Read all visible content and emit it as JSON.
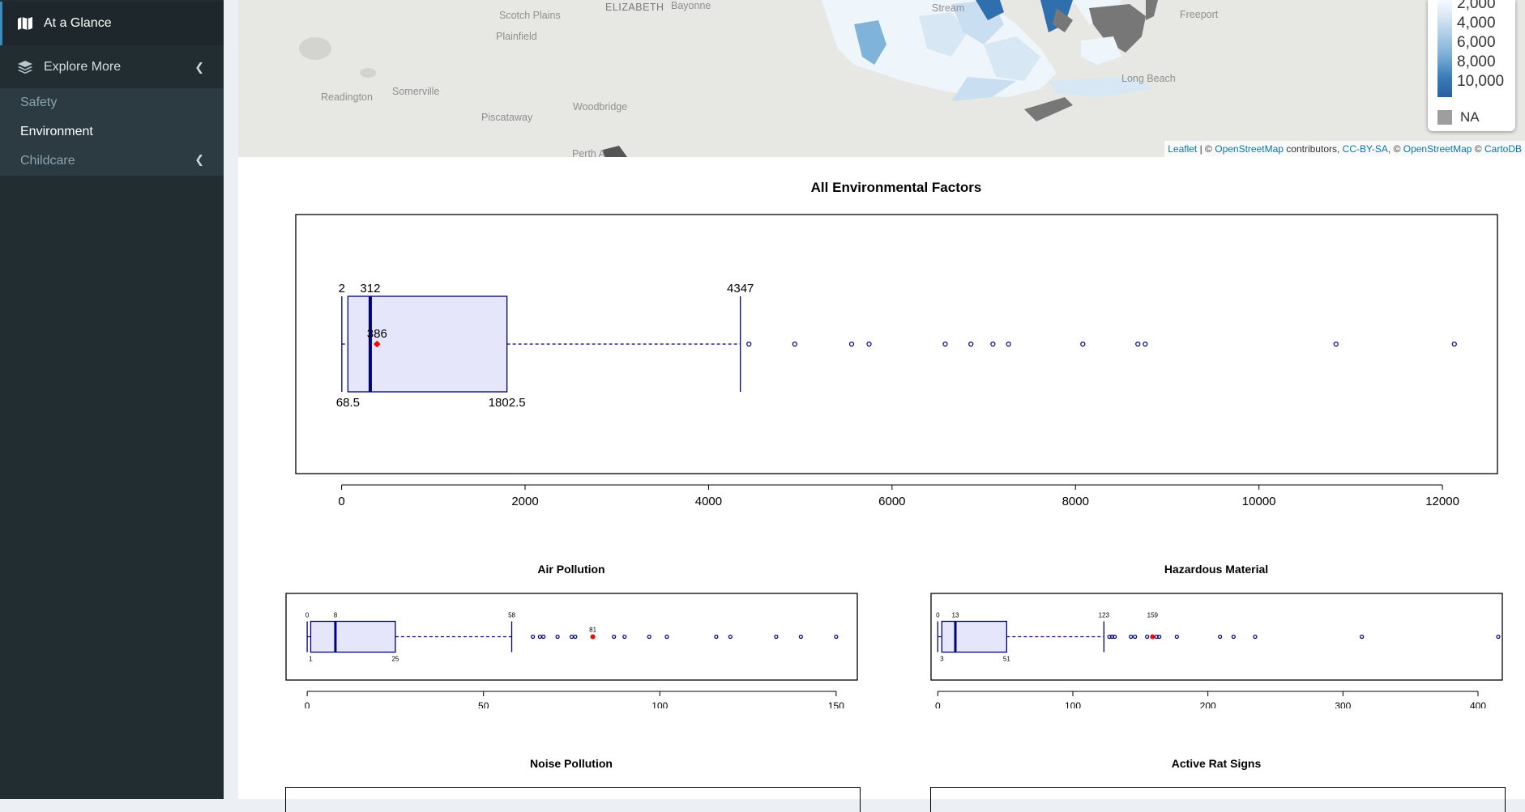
{
  "sidebar": {
    "glance_label": "At a Glance",
    "explore_label": "Explore More",
    "sub_items": [
      "Safety",
      "Environment",
      "Childcare"
    ]
  },
  "map": {
    "places": [
      "Scotch Plains",
      "ELIZABETH",
      "Bayonne",
      "Plainfield",
      "Readington",
      "Somerville",
      "Woodbridge",
      "Piscataway",
      "Perth A",
      "Stream",
      "Freeport",
      "Long Beach"
    ],
    "legend": {
      "ticks": [
        "2,000",
        "4,000",
        "6,000",
        "8,000",
        "10,000"
      ],
      "na_label": "NA"
    },
    "attribution": {
      "leaflet": "Leaflet",
      "sep1": " | © ",
      "osm": "OpenStreetMap",
      "contributors": " contributors, ",
      "ccbysa": "CC-BY-SA",
      "sep2": ", © ",
      "osm2": "OpenStreetMap",
      "sep3": " © ",
      "cartodb": "CartoDB"
    },
    "colors": {
      "light": "#c9def0",
      "mid": "#7fb3d9",
      "dark": "#2f6fae",
      "na": "#8a8a8a"
    }
  },
  "chart_data": [
    {
      "type": "boxplot",
      "title": "All Environmental Factors",
      "xlim": [
        -500,
        12600
      ],
      "xticks": [
        0,
        2000,
        4000,
        6000,
        8000,
        10000,
        12000
      ],
      "min": 2,
      "q1": 68.5,
      "median": 312,
      "mean": 386,
      "q3": 1802.5,
      "whisker_max": 4347,
      "labels_top": [
        "2",
        "312",
        "4347"
      ],
      "labels_bottom": [
        "68.5",
        "1802.5"
      ],
      "mean_label": "386",
      "outliers": [
        4440,
        4940,
        5560,
        5750,
        6580,
        6860,
        7100,
        7270,
        8080,
        8680,
        8760,
        10840,
        12130
      ]
    },
    {
      "type": "boxplot",
      "title": "Air Pollution",
      "xlim": [
        -6,
        156
      ],
      "xticks": [
        0,
        50,
        100,
        150
      ],
      "min": 0,
      "q1": 1,
      "median": 8,
      "q3": 25,
      "whisker_max": 58,
      "highlight": 81,
      "labels_top": [
        "0",
        "8",
        "58"
      ],
      "labels_bottom": [
        "1",
        "25"
      ],
      "highlight_label": "81",
      "outliers": [
        64,
        66,
        67,
        71,
        75,
        76,
        87,
        90,
        97,
        102,
        116,
        120,
        133,
        140,
        150
      ]
    },
    {
      "type": "boxplot",
      "title": "Hazardous Material",
      "xlim": [
        -5,
        418
      ],
      "xticks": [
        0,
        100,
        200,
        300,
        400
      ],
      "min": 0,
      "q1": 3,
      "median": 13,
      "q3": 51,
      "whisker_max": 123,
      "highlight": 159,
      "labels_top": [
        "0",
        "13",
        "123",
        "159"
      ],
      "labels_bottom": [
        "3",
        "51"
      ],
      "outliers": [
        127,
        129,
        131,
        143,
        146,
        155,
        162,
        164,
        177,
        209,
        219,
        235,
        314,
        415
      ]
    },
    {
      "type": "boxplot",
      "title": "Noise Pollution"
    },
    {
      "type": "boxplot",
      "title": "Active Rat Signs"
    }
  ],
  "styles": {
    "box_fill": "#e6e6fa",
    "box_stroke": "#000080",
    "mean_color": "#ff0000"
  }
}
